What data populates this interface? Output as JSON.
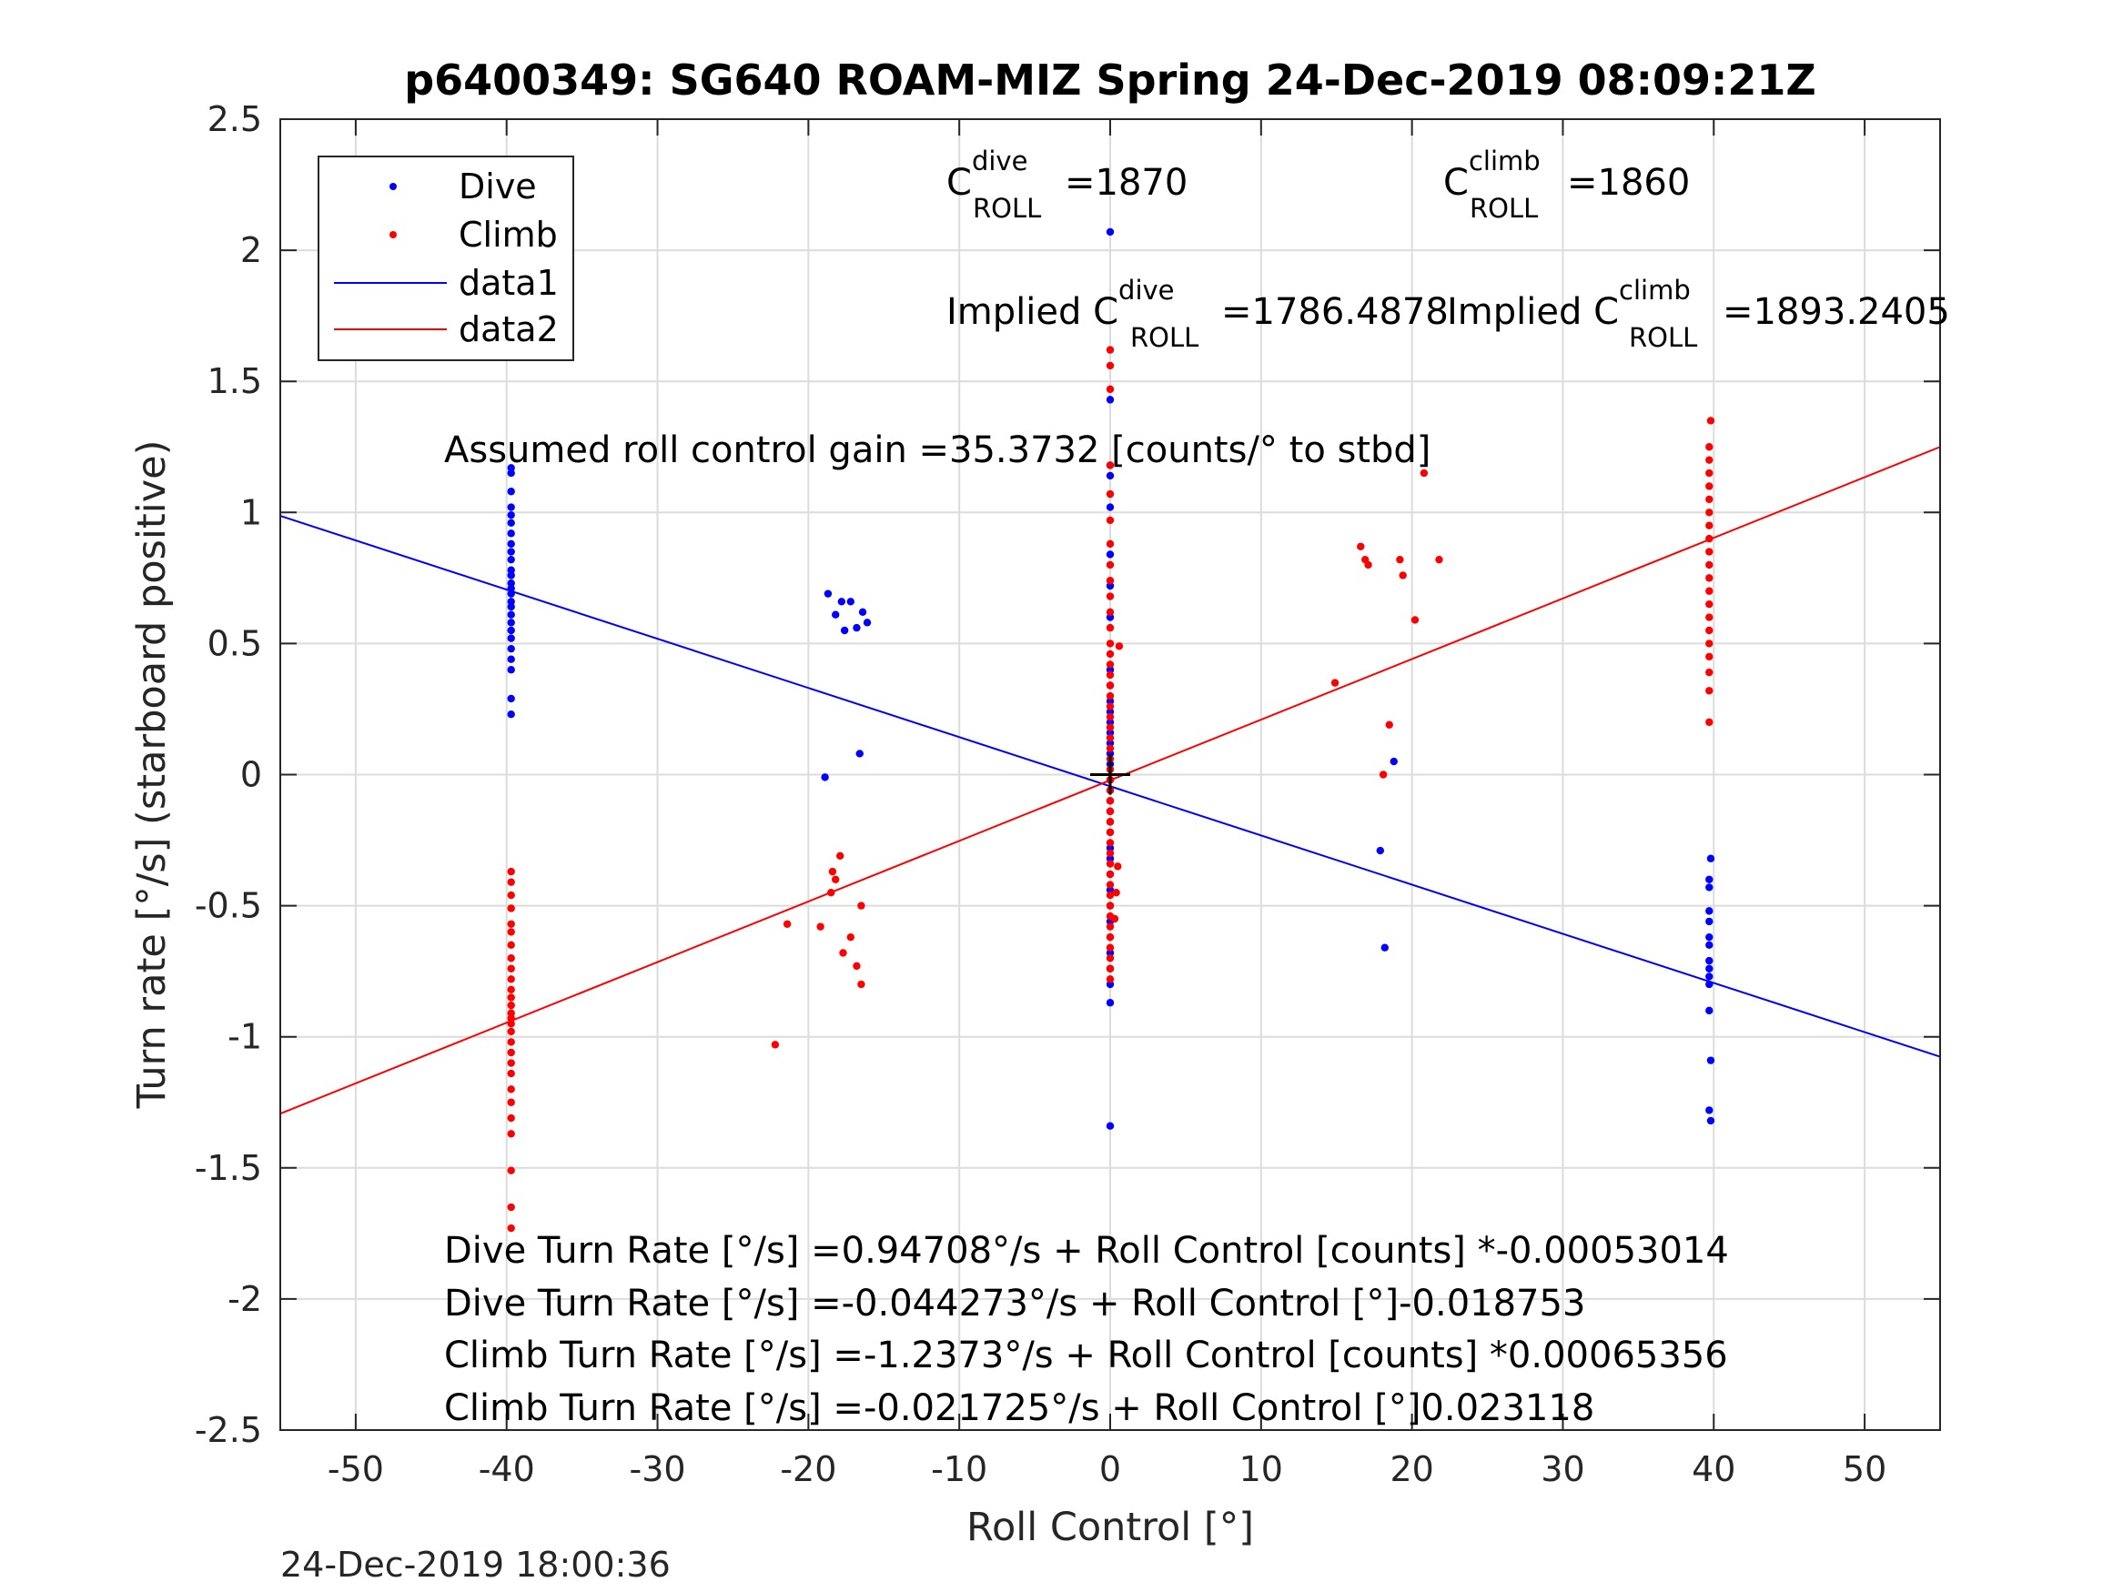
{
  "chart_data": {
    "type": "scatter",
    "title": "p6400349: SG640 ROAM-MIZ Spring 24-Dec-2019 08:09:21Z",
    "xlabel": "Roll Control [°]",
    "ylabel": "Turn rate [°/s] (starboard positive)",
    "xlim": [
      -55,
      55
    ],
    "ylim": [
      -2.5,
      2.5
    ],
    "xticks": [
      -50,
      -40,
      -30,
      -20,
      -10,
      0,
      10,
      20,
      30,
      40,
      50
    ],
    "yticks": [
      2.5,
      2,
      1.5,
      1,
      0.5,
      0,
      -0.5,
      -1,
      -1.5,
      -2,
      -2.5
    ],
    "ytick_labels": [
      "2.5",
      "2",
      "1.5",
      "1",
      "0.5",
      "0",
      "-0.5",
      "-1",
      "-1.5",
      "-2",
      "-2.5"
    ],
    "grid": true,
    "legend_position": "top-left",
    "legend": [
      "Dive",
      "Climb",
      "data1",
      "data2"
    ],
    "timestamp": "24-Dec-2019 18:00:36",
    "annotations": {
      "c_dive": {
        "base": "C",
        "sup": "dive",
        "sub": "ROLL",
        "value": "=1870"
      },
      "c_climb": {
        "base": "C",
        "sup": "climb",
        "sub": "ROLL",
        "value": "=1860"
      },
      "implied_dive": {
        "base": "Implied C",
        "sup": "dive",
        "sub": "ROLL",
        "value": "=1786.4878"
      },
      "implied_climb": {
        "base": "Implied C",
        "sup": "climb",
        "sub": "ROLL",
        "value": "=1893.2405"
      },
      "gain": "Assumed roll control gain =35.3732 [counts/° to stbd]",
      "eq1": "Dive Turn Rate [°/s] =0.94708°/s + Roll Control [counts] *-0.00053014",
      "eq2": "Dive Turn Rate [°/s] =-0.044273°/s + Roll Control [°]-0.018753",
      "eq3": "Climb Turn Rate [°/s] =-1.2373°/s + Roll Control [counts] *0.00065356",
      "eq4": "Climb Turn Rate [°/s] =-0.021725°/s + Roll Control [°]0.023118"
    },
    "colors": {
      "dive": "#0000ff",
      "climb": "#ff0000",
      "crosshair": "#000000"
    },
    "fit_lines": [
      {
        "name": "data1",
        "color": "#0000ff",
        "x": [
          -55,
          55
        ],
        "y": [
          0.987,
          -1.076
        ]
      },
      {
        "name": "data2",
        "color": "#ff0000",
        "x": [
          -55,
          55
        ],
        "y": [
          -1.293,
          1.25
        ]
      }
    ],
    "series": [
      {
        "name": "Dive",
        "color": "#0000ff",
        "points": [
          [
            -39.7,
            1.17
          ],
          [
            -39.7,
            1.15
          ],
          [
            -39.7,
            1.08
          ],
          [
            -39.7,
            1.02
          ],
          [
            -39.7,
            0.99
          ],
          [
            -39.7,
            0.96
          ],
          [
            -39.7,
            0.92
          ],
          [
            -39.7,
            0.88
          ],
          [
            -39.7,
            0.85
          ],
          [
            -39.7,
            0.82
          ],
          [
            -39.7,
            0.78
          ],
          [
            -39.7,
            0.76
          ],
          [
            -39.7,
            0.73
          ],
          [
            -39.7,
            0.71
          ],
          [
            -39.7,
            0.69
          ],
          [
            -39.7,
            0.66
          ],
          [
            -39.7,
            0.64
          ],
          [
            -39.7,
            0.61
          ],
          [
            -39.7,
            0.58
          ],
          [
            -39.7,
            0.55
          ],
          [
            -39.7,
            0.52
          ],
          [
            -39.7,
            0.48
          ],
          [
            -39.7,
            0.44
          ],
          [
            -39.7,
            0.4
          ],
          [
            -39.7,
            0.29
          ],
          [
            -39.7,
            0.23
          ],
          [
            -18.7,
            0.69
          ],
          [
            -17.8,
            0.66
          ],
          [
            -17.2,
            0.66
          ],
          [
            -16.4,
            0.62
          ],
          [
            -18.2,
            0.61
          ],
          [
            -16.1,
            0.58
          ],
          [
            -16.8,
            0.56
          ],
          [
            -17.6,
            0.55
          ],
          [
            -16.6,
            0.08
          ],
          [
            -18.9,
            -0.01
          ],
          [
            0,
            2.07
          ],
          [
            0,
            1.43
          ],
          [
            0,
            1.18
          ],
          [
            0,
            1.14
          ],
          [
            0,
            1.02
          ],
          [
            0,
            0.84
          ],
          [
            0,
            0.72
          ],
          [
            0,
            0.6
          ],
          [
            0,
            0.4
          ],
          [
            0,
            0.34
          ],
          [
            0,
            0.28
          ],
          [
            0,
            0.24
          ],
          [
            0,
            0.2
          ],
          [
            0,
            0.16
          ],
          [
            0,
            0.12
          ],
          [
            0,
            0.08
          ],
          [
            0,
            0.04
          ],
          [
            0,
            -0.02
          ],
          [
            0,
            -0.06
          ],
          [
            0,
            -0.1
          ],
          [
            0,
            -0.14
          ],
          [
            0,
            -0.18
          ],
          [
            0,
            -0.22
          ],
          [
            0,
            -0.28
          ],
          [
            0,
            -0.32
          ],
          [
            0,
            -0.38
          ],
          [
            0,
            -0.44
          ],
          [
            0,
            -0.5
          ],
          [
            0,
            -0.56
          ],
          [
            0,
            -0.62
          ],
          [
            0,
            -0.68
          ],
          [
            0,
            -0.74
          ],
          [
            0,
            -0.8
          ],
          [
            0,
            -0.87
          ],
          [
            0,
            -1.34
          ],
          [
            18.8,
            0.05
          ],
          [
            17.9,
            -0.29
          ],
          [
            18.2,
            -0.66
          ],
          [
            39.8,
            -0.32
          ],
          [
            39.7,
            -0.4
          ],
          [
            39.7,
            -0.43
          ],
          [
            39.7,
            -0.52
          ],
          [
            39.7,
            -0.56
          ],
          [
            39.7,
            -0.62
          ],
          [
            39.7,
            -0.65
          ],
          [
            39.7,
            -0.71
          ],
          [
            39.7,
            -0.74
          ],
          [
            39.7,
            -0.77
          ],
          [
            39.7,
            -0.8
          ],
          [
            39.7,
            -0.9
          ],
          [
            39.8,
            -1.09
          ],
          [
            39.7,
            -1.28
          ],
          [
            39.8,
            -1.32
          ]
        ]
      },
      {
        "name": "Climb",
        "color": "#ff0000",
        "points": [
          [
            -39.7,
            -0.37
          ],
          [
            -39.7,
            -0.41
          ],
          [
            -39.7,
            -0.46
          ],
          [
            -39.7,
            -0.51
          ],
          [
            -39.7,
            -0.57
          ],
          [
            -39.7,
            -0.6
          ],
          [
            -39.7,
            -0.65
          ],
          [
            -39.7,
            -0.7
          ],
          [
            -39.7,
            -0.74
          ],
          [
            -39.7,
            -0.78
          ],
          [
            -39.7,
            -0.82
          ],
          [
            -39.7,
            -0.85
          ],
          [
            -39.7,
            -0.88
          ],
          [
            -39.7,
            -0.91
          ],
          [
            -39.7,
            -0.93
          ],
          [
            -39.7,
            -0.95
          ],
          [
            -39.7,
            -0.98
          ],
          [
            -39.7,
            -1.02
          ],
          [
            -39.7,
            -1.06
          ],
          [
            -39.7,
            -1.1
          ],
          [
            -39.7,
            -1.14
          ],
          [
            -39.7,
            -1.2
          ],
          [
            -39.7,
            -1.25
          ],
          [
            -39.7,
            -1.31
          ],
          [
            -39.7,
            -1.37
          ],
          [
            -39.7,
            -1.51
          ],
          [
            -39.7,
            -1.65
          ],
          [
            -39.7,
            -1.73
          ],
          [
            -22.2,
            -1.03
          ],
          [
            -21.4,
            -0.57
          ],
          [
            -19.2,
            -0.58
          ],
          [
            -18.5,
            -0.45
          ],
          [
            -17.7,
            -0.68
          ],
          [
            -17.2,
            -0.62
          ],
          [
            -16.8,
            -0.73
          ],
          [
            -16.5,
            -0.8
          ],
          [
            -16.5,
            -0.5
          ],
          [
            -18.2,
            -0.4
          ],
          [
            -17.9,
            -0.31
          ],
          [
            -18.4,
            -0.37
          ],
          [
            0,
            1.62
          ],
          [
            0,
            1.56
          ],
          [
            0,
            1.47
          ],
          [
            0,
            1.18
          ],
          [
            0,
            1.07
          ],
          [
            0,
            0.97
          ],
          [
            0,
            0.88
          ],
          [
            0,
            0.8
          ],
          [
            0,
            0.74
          ],
          [
            0,
            0.68
          ],
          [
            0,
            0.62
          ],
          [
            0,
            0.56
          ],
          [
            0,
            0.5
          ],
          [
            0,
            0.46
          ],
          [
            0,
            0.42
          ],
          [
            0,
            0.38
          ],
          [
            0,
            0.34
          ],
          [
            0,
            0.3
          ],
          [
            0,
            0.26
          ],
          [
            0,
            0.22
          ],
          [
            0,
            0.18
          ],
          [
            0,
            0.14
          ],
          [
            0,
            0.1
          ],
          [
            0,
            0.06
          ],
          [
            0,
            0.02
          ],
          [
            0,
            -0.02
          ],
          [
            0,
            -0.06
          ],
          [
            0,
            -0.1
          ],
          [
            0,
            -0.14
          ],
          [
            0,
            -0.18
          ],
          [
            0,
            -0.22
          ],
          [
            0,
            -0.26
          ],
          [
            0,
            -0.3
          ],
          [
            0,
            -0.34
          ],
          [
            0,
            -0.38
          ],
          [
            0,
            -0.42
          ],
          [
            0,
            -0.46
          ],
          [
            0,
            -0.5
          ],
          [
            0,
            -0.54
          ],
          [
            0,
            -0.58
          ],
          [
            0,
            -0.62
          ],
          [
            0,
            -0.66
          ],
          [
            0,
            -0.7
          ],
          [
            0,
            -0.74
          ],
          [
            0,
            -0.78
          ],
          [
            0.6,
            0.49
          ],
          [
            0.5,
            -0.35
          ],
          [
            0.4,
            -0.45
          ],
          [
            0.3,
            -0.55
          ],
          [
            14.9,
            0.35
          ],
          [
            16.6,
            0.87
          ],
          [
            16.9,
            0.82
          ],
          [
            17.1,
            0.8
          ],
          [
            19.2,
            0.82
          ],
          [
            19.4,
            0.76
          ],
          [
            20.2,
            0.59
          ],
          [
            20.8,
            1.15
          ],
          [
            21.8,
            0.82
          ],
          [
            18.5,
            0.19
          ],
          [
            18.1,
            0.0
          ],
          [
            39.8,
            1.35
          ],
          [
            39.7,
            1.25
          ],
          [
            39.7,
            1.2
          ],
          [
            39.7,
            1.15
          ],
          [
            39.7,
            1.1
          ],
          [
            39.7,
            1.05
          ],
          [
            39.7,
            1.0
          ],
          [
            39.7,
            0.95
          ],
          [
            39.7,
            0.9
          ],
          [
            39.7,
            0.85
          ],
          [
            39.7,
            0.8
          ],
          [
            39.7,
            0.75
          ],
          [
            39.7,
            0.7
          ],
          [
            39.7,
            0.65
          ],
          [
            39.7,
            0.6
          ],
          [
            39.7,
            0.55
          ],
          [
            39.7,
            0.5
          ],
          [
            39.7,
            0.45
          ],
          [
            39.7,
            0.39
          ],
          [
            39.7,
            0.32
          ],
          [
            39.7,
            0.2
          ]
        ]
      }
    ]
  }
}
